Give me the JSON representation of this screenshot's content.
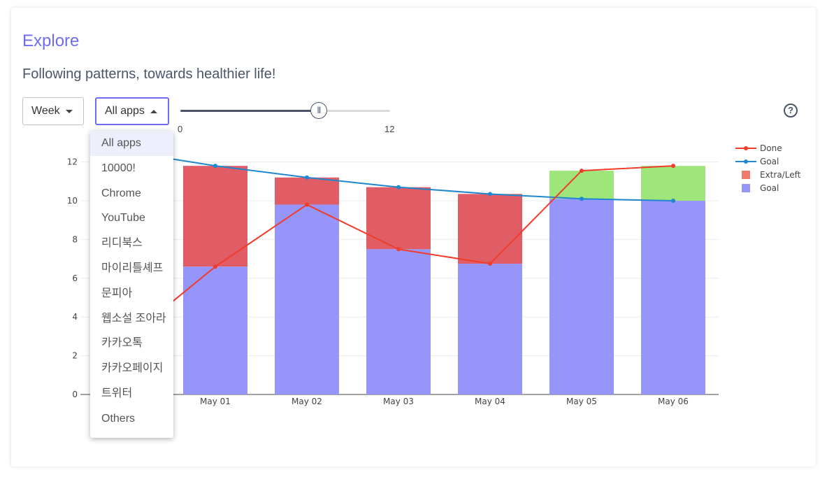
{
  "page": {
    "title": "Explore",
    "subtitle": "Following patterns, towards healthier life!"
  },
  "controls": {
    "period_select": {
      "value": "Week"
    },
    "app_select": {
      "value": "All apps",
      "expanded": true,
      "options": [
        "All apps",
        "10000!",
        "Chrome",
        "YouTube",
        "리디북스",
        "마이리틀셰프",
        "문피아",
        "웹소설 조아라",
        "카카오톡",
        "카카오페이지",
        "트위터",
        "Others"
      ]
    },
    "slider": {
      "min_label": "0",
      "max_label": "12",
      "value_fraction": 0.66
    },
    "help_icon": "question-circle-icon"
  },
  "chart_data": {
    "type": "bar",
    "barmode": "stack",
    "categories": [
      "May 01",
      "May 02",
      "May 03",
      "May 04",
      "May 05",
      "May 06"
    ],
    "ylim": [
      0,
      12.6
    ],
    "yticks": [
      "0",
      "2",
      "4",
      "6",
      "8",
      "10",
      "12"
    ],
    "grid": true,
    "legend_position": "right",
    "series": [
      {
        "name": "Goal",
        "kind": "bar",
        "color": "#9696fa",
        "values": [
          6.6,
          9.8,
          7.5,
          6.75,
          10.1,
          10.0
        ]
      },
      {
        "name": "Extra/Left",
        "kind": "bar",
        "color_legend": "#ef7b6e",
        "color_left": "#e05d66",
        "color_extra": "#9fe67a",
        "values": [
          5.2,
          1.4,
          3.2,
          3.6,
          1.45,
          1.8
        ]
      },
      {
        "name": "Done",
        "kind": "line",
        "color": "#f03c2a",
        "values": [
          6.6,
          9.8,
          7.5,
          6.75,
          11.55,
          11.8
        ]
      },
      {
        "name": "Goal",
        "kind": "line",
        "color": "#1f86d0",
        "values": [
          11.8,
          11.2,
          10.7,
          10.35,
          10.1,
          10.0
        ]
      }
    ],
    "legend": [
      "Done",
      "Goal",
      "Extra/Left",
      "Goal"
    ]
  }
}
